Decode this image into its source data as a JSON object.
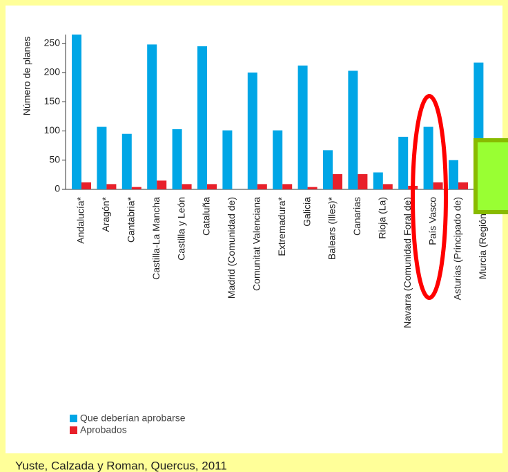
{
  "chart_data": {
    "type": "bar",
    "y_label": "Número de planes",
    "categories": [
      "Andalucía*",
      "Aragón*",
      "Cantabria*",
      "Castilla-La Mancha",
      "Castilla y León",
      "Cataluña",
      "Madrid (Comunidad de)",
      "Comunitat Valenciana",
      "Extremadura*",
      "Galicia",
      "Balears (Illes)*",
      "Canarias",
      "Rioja (La)",
      "Navarra (Comunidad Foral de)",
      "País Vasco",
      "Asturias (Principado de)",
      "Murcia (Región de)"
    ],
    "series": [
      {
        "name": "Que deberían aprobarse",
        "color": "#00a6e6",
        "values": [
          265,
          107,
          95,
          248,
          103,
          245,
          101,
          200,
          101,
          212,
          67,
          203,
          29,
          90,
          107,
          50,
          217
        ]
      },
      {
        "name": "Aprobados",
        "color": "#e8202a",
        "values": [
          12,
          9,
          4,
          15,
          9,
          9,
          0,
          9,
          9,
          4,
          26,
          26,
          9,
          6,
          12,
          12,
          null
        ]
      }
    ],
    "ylim": [
      0,
      265
    ],
    "yticks": [
      0,
      50,
      100,
      150,
      200,
      250
    ],
    "caption": "Yuste, Calzada y Roman, Quercus, 2011"
  }
}
